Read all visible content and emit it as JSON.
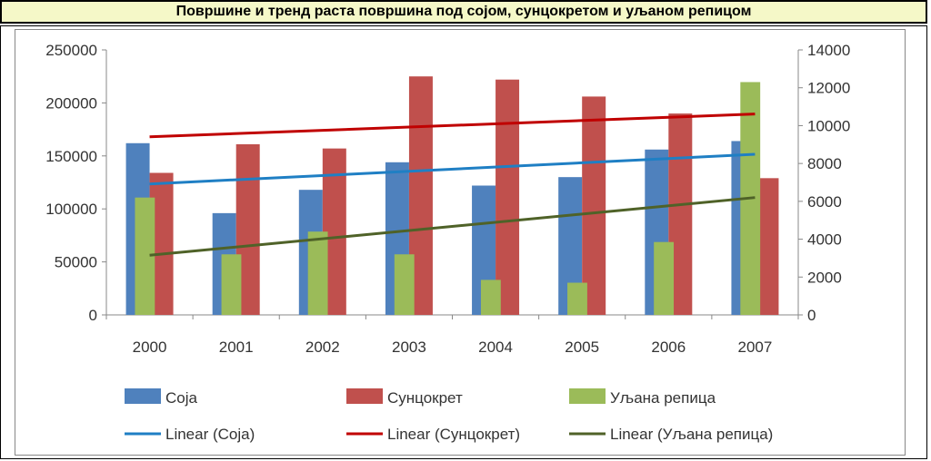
{
  "title": "Површине и тренд раста површина под сојом, сунцокретом и уљаном репицом",
  "chart_data": {
    "type": "bar",
    "categories": [
      "2000",
      "2001",
      "2002",
      "2003",
      "2004",
      "2005",
      "2006",
      "2007"
    ],
    "series": [
      {
        "name": "Соја",
        "axis": "left",
        "color": "#4f81bd",
        "values": [
          162000,
          96000,
          118000,
          144000,
          122000,
          130000,
          156000,
          164000
        ]
      },
      {
        "name": "Сунцокрет",
        "axis": "left",
        "color": "#c0504d",
        "values": [
          134000,
          161000,
          157000,
          225000,
          222000,
          206000,
          190000,
          129000
        ]
      },
      {
        "name": "Уљана репица",
        "axis": "right",
        "color": "#9bbb59",
        "values": [
          6200,
          3200,
          4400,
          3200,
          1850,
          1700,
          3850,
          12300
        ]
      }
    ],
    "trendlines": [
      {
        "name": "Linear (Соја)",
        "series": "Соја",
        "axis": "left",
        "color": "#1f7fc4",
        "start": 123500,
        "end": 151500
      },
      {
        "name": "Linear (Сунцокрет)",
        "series": "Сунцокрет",
        "axis": "left",
        "color": "#c00000",
        "start": 168000,
        "end": 189500
      },
      {
        "name": "Linear (Уљана репица)",
        "series": "Уљана репица",
        "axis": "right",
        "color": "#4f6228",
        "start": 3150,
        "end": 6200
      }
    ],
    "y_left": {
      "min": 0,
      "max": 250000,
      "ticks": [
        "0",
        "50000",
        "100000",
        "150000",
        "200000",
        "250000"
      ]
    },
    "y_right": {
      "min": 0,
      "max": 14000,
      "ticks": [
        "0",
        "2000",
        "4000",
        "6000",
        "8000",
        "10000",
        "12000",
        "14000"
      ]
    },
    "grid": false,
    "legend_position": "bottom"
  }
}
